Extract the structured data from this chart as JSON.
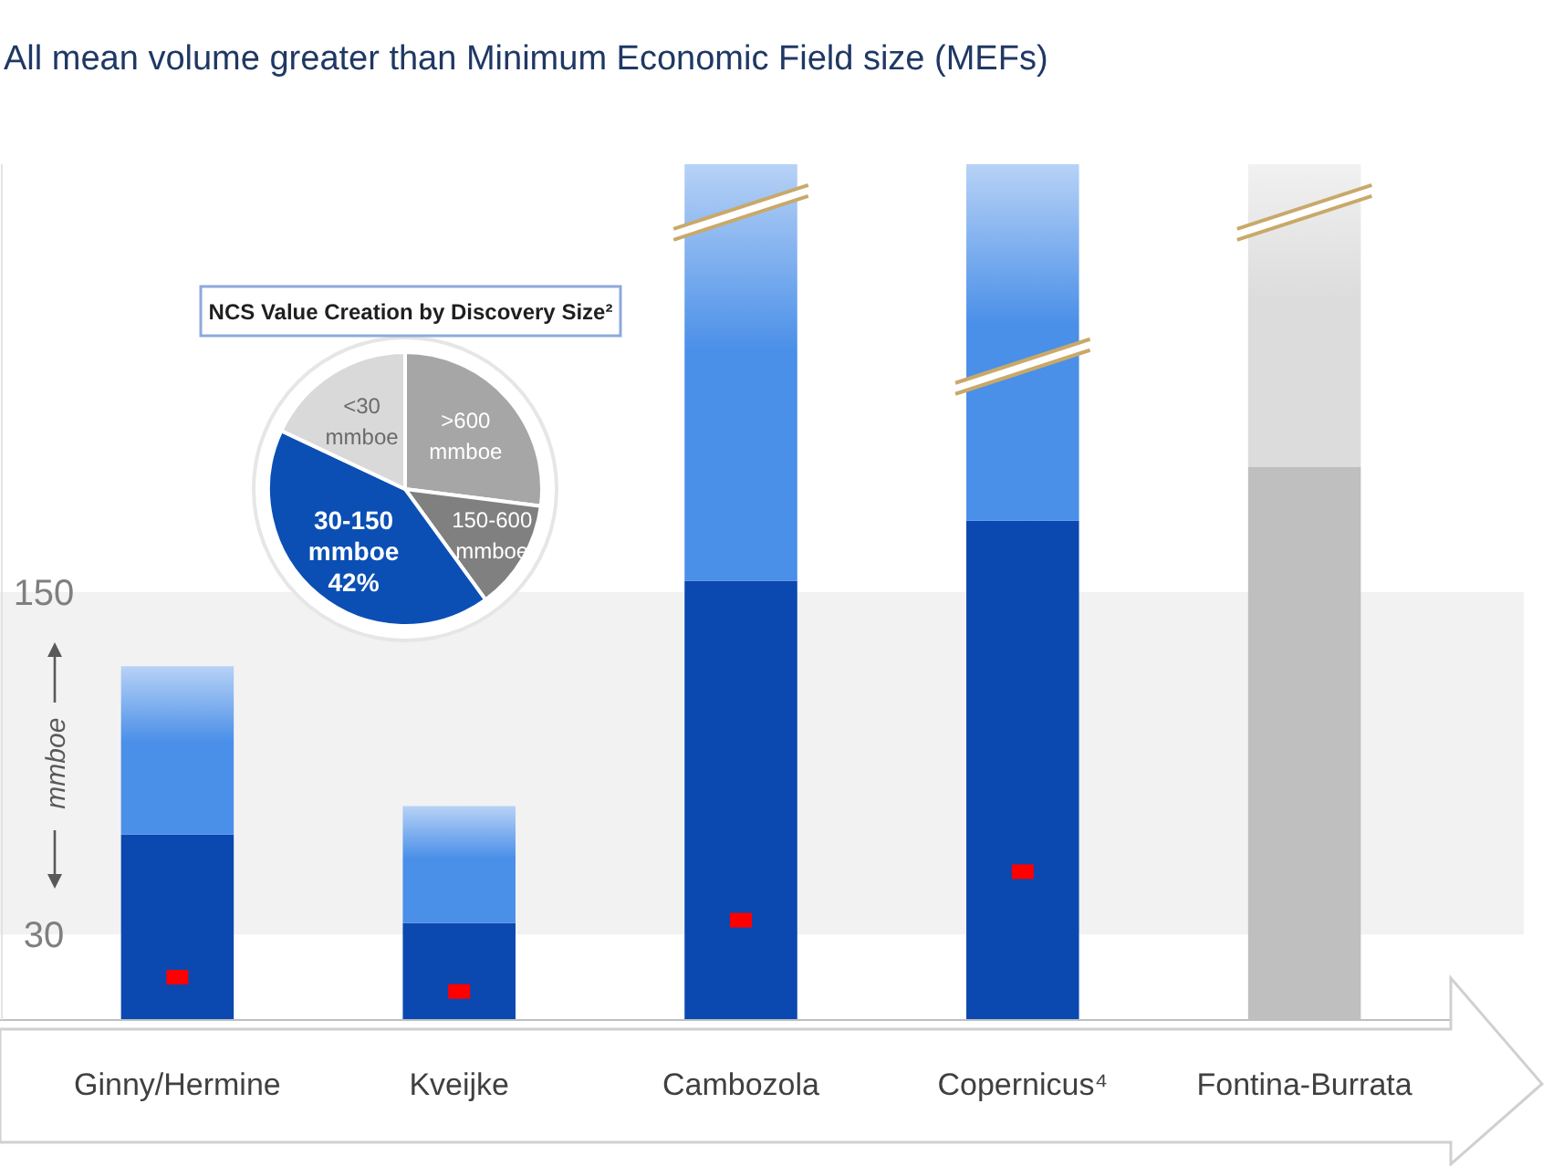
{
  "chart_data": [
    {
      "type": "bar",
      "title": "All mean volume greater than Minimum Economic Field size (MEFs)",
      "ylabel": "mmboe",
      "categories": [
        "Ginny/Hermine",
        "Kveijke",
        "Cambozola",
        "Copernicus⁴",
        "Fontina-Burrata"
      ],
      "stacked": true,
      "ylim": [
        0,
        300
      ],
      "yticks": [
        30,
        150
      ],
      "series": [
        {
          "colors": [
            "#0b48b0",
            "#0b48b0",
            "#0b48b0",
            "#0b48b0",
            "#bfbfbf"
          ],
          "values": [
            65,
            34,
            154,
            175,
            194
          ]
        },
        {
          "colors": [
            "#4a8fe8",
            "#4a8fe8",
            "#4a8fe8",
            "#4a8fe8",
            "#dcdcdc"
          ],
          "values": [
            59,
            41,
            146,
            125,
            106
          ]
        },
        {
          "type": "scatter",
          "marker": "square",
          "color": "#ff0000",
          "x": [
            "Ginny/Hermine",
            "Kveijke",
            "Cambozola",
            "Copernicus⁴"
          ],
          "values": [
            15,
            10,
            35,
            52
          ]
        }
      ],
      "bands": [
        {
          "axis": "y",
          "from": 30,
          "to": 150,
          "color": "#f2f2f2"
        }
      ]
    },
    {
      "type": "pie",
      "title": "NCS Value Creation by Discovery Size²",
      "categories": [
        ">600 mmboe",
        "150-600 mmboe",
        "30-150 mmboe",
        "<30 mmboe"
      ],
      "values": [
        27,
        13,
        42,
        18
      ],
      "colors": [
        "#a6a6a6",
        "#808080",
        "#0b4fb5",
        "#d9d9d9"
      ],
      "value_labels": [
        null,
        null,
        "42%",
        null
      ]
    }
  ]
}
